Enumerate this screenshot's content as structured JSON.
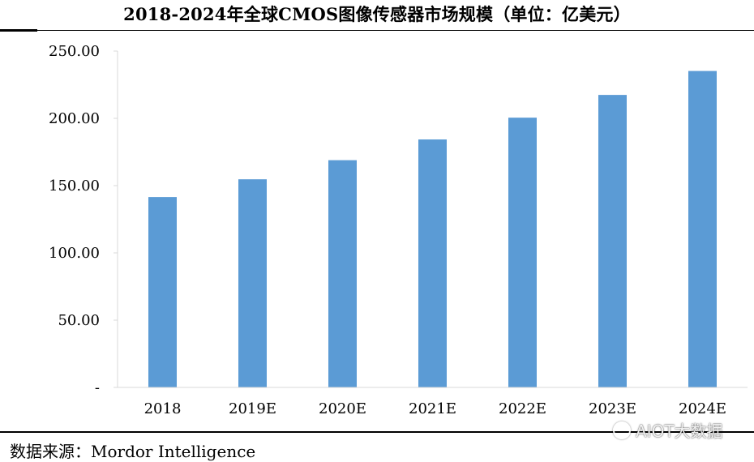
{
  "colors": {
    "bar": "#5b9bd5",
    "axis": "#d9d9d9",
    "text": "#000000"
  },
  "chart_data": {
    "type": "bar",
    "title": "2018-2024年全球CMOS图像传感器市场规模（单位：亿美元）",
    "categories": [
      "2018",
      "2019E",
      "2020E",
      "2021E",
      "2022E",
      "2023E",
      "2024E"
    ],
    "values": [
      141.5,
      154.7,
      168.9,
      184.3,
      200.5,
      217.4,
      235.2
    ],
    "yticks": [
      "-",
      "50.00",
      "100.00",
      "150.00",
      "200.00",
      "250.00"
    ],
    "ylim": [
      0,
      250
    ],
    "xlabel": "",
    "ylabel": "",
    "grid": false
  },
  "source": "数据来源：Mordor Intelligence",
  "watermark": "AIOT大数据"
}
